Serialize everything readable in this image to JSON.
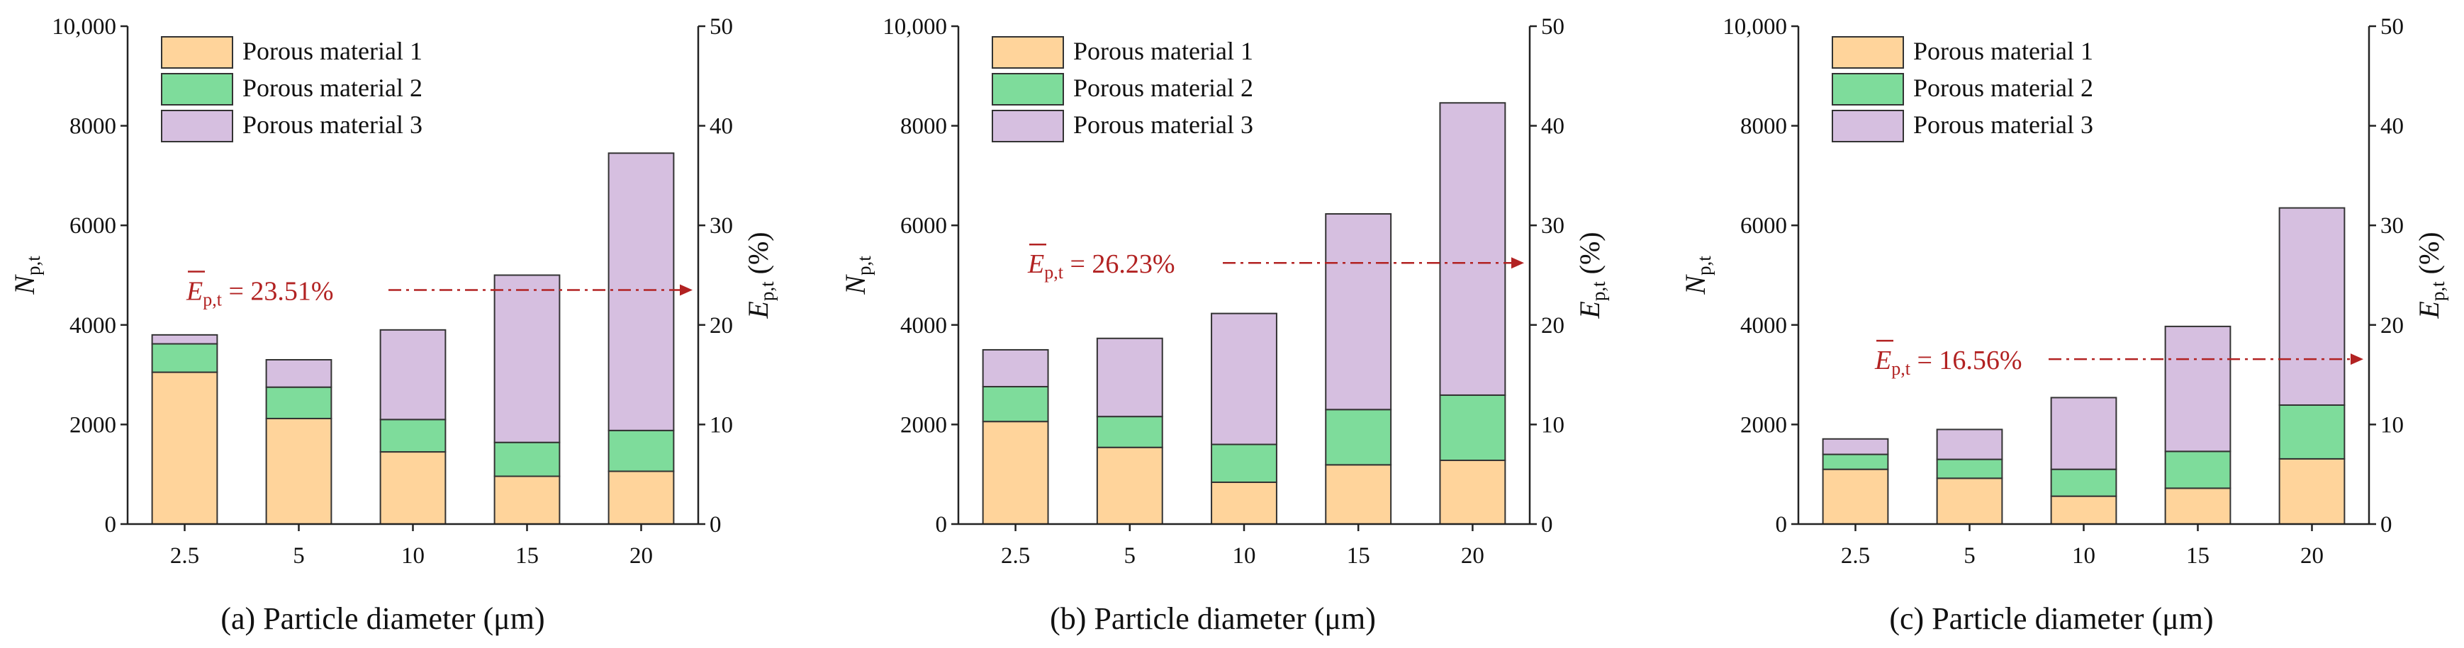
{
  "colors": {
    "material_1": "#ffd49b",
    "material_2": "#7edc9b",
    "material_3": "#d6bfe0",
    "average_line": "#b22222",
    "axis": "#222222"
  },
  "shared": {
    "left_axis_symbol": "N",
    "left_axis_subscript": "p,t",
    "right_axis_symbol": "E",
    "right_axis_subscript": "p,t",
    "right_axis_unit": "(%)",
    "legend": [
      "Porous material 1",
      "Porous material 2",
      "Porous material 3"
    ],
    "y_ticks": [
      "0",
      "2000",
      "4000",
      "6000",
      "8000",
      "10,000"
    ],
    "y_tick_values": [
      0,
      2000,
      4000,
      6000,
      8000,
      10000
    ],
    "y2_ticks": [
      "0",
      "10",
      "20",
      "30",
      "40",
      "50"
    ],
    "y2_tick_values": [
      0,
      10,
      20,
      30,
      40,
      50
    ]
  },
  "chart_data": [
    {
      "type": "bar",
      "stacked": true,
      "caption": "(a) Particle diameter (μm)",
      "categories": [
        "2.5",
        "5",
        "10",
        "15",
        "20"
      ],
      "series": [
        {
          "name": "Porous material 1",
          "values": [
            3050,
            2120,
            1450,
            960,
            1060
          ]
        },
        {
          "name": "Porous material 2",
          "values": [
            570,
            630,
            650,
            680,
            820
          ]
        },
        {
          "name": "Porous material 3",
          "values": [
            180,
            550,
            1800,
            3360,
            5570
          ]
        }
      ],
      "ylim": [
        0,
        10000
      ],
      "y2lim": [
        0,
        50
      ],
      "average": {
        "symbol": "E",
        "subscript": "p,t",
        "text": " = 23.51%",
        "value": 23.51
      }
    },
    {
      "type": "bar",
      "stacked": true,
      "caption": "(b) Particle diameter (μm)",
      "categories": [
        "2.5",
        "5",
        "10",
        "15",
        "20"
      ],
      "series": [
        {
          "name": "Porous material 1",
          "values": [
            2060,
            1540,
            840,
            1190,
            1280
          ]
        },
        {
          "name": "Porous material 2",
          "values": [
            700,
            620,
            760,
            1110,
            1310
          ]
        },
        {
          "name": "Porous material 3",
          "values": [
            740,
            1570,
            2630,
            3930,
            5870
          ]
        }
      ],
      "ylim": [
        0,
        10000
      ],
      "y2lim": [
        0,
        50
      ],
      "average": {
        "symbol": "E",
        "subscript": "p,t",
        "text": " = 26.23%",
        "value": 26.23
      }
    },
    {
      "type": "bar",
      "stacked": true,
      "caption": "(c) Particle diameter (μm)",
      "categories": [
        "2.5",
        "5",
        "10",
        "15",
        "20"
      ],
      "series": [
        {
          "name": "Porous material 1",
          "values": [
            1100,
            920,
            560,
            720,
            1310
          ]
        },
        {
          "name": "Porous material 2",
          "values": [
            300,
            380,
            540,
            740,
            1080
          ]
        },
        {
          "name": "Porous material 3",
          "values": [
            310,
            600,
            1440,
            2510,
            3960
          ]
        }
      ],
      "ylim": [
        0,
        10000
      ],
      "y2lim": [
        0,
        50
      ],
      "average": {
        "symbol": "E",
        "subscript": "p,t",
        "text": " = 16.56%",
        "value": 16.56
      }
    }
  ]
}
